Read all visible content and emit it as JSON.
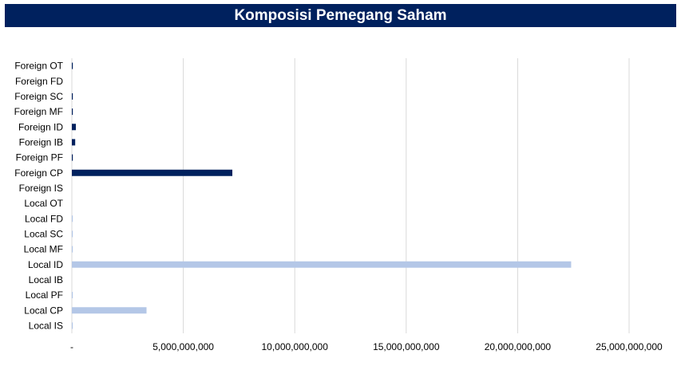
{
  "header": {
    "title": "Komposisi Pemegang Saham"
  },
  "colors": {
    "title_bg": "#00215E",
    "foreign": "#00215E",
    "local": "#B4C7E7",
    "grid": "#D9D9D9"
  },
  "chart_data": {
    "type": "bar",
    "orientation": "horizontal",
    "title": "Komposisi Pemegang Saham",
    "xlabel": "",
    "ylabel": "",
    "xlim": [
      0,
      25000000000
    ],
    "grid": true,
    "legend": "none",
    "categories": [
      "Foreign OT",
      "Foreign FD",
      "Foreign SC",
      "Foreign MF",
      "Foreign ID",
      "Foreign IB",
      "Foreign PF",
      "Foreign CP",
      "Foreign IS",
      "Local OT",
      "Local FD",
      "Local SC",
      "Local MF",
      "Local ID",
      "Local IB",
      "Local PF",
      "Local CP",
      "Local IS"
    ],
    "values": [
      40000000,
      0,
      30000000,
      25000000,
      180000000,
      150000000,
      30000000,
      7200000000,
      0,
      0,
      20000000,
      15000000,
      15000000,
      22400000000,
      0,
      15000000,
      3350000000,
      10000000
    ],
    "groups": [
      "foreign",
      "foreign",
      "foreign",
      "foreign",
      "foreign",
      "foreign",
      "foreign",
      "foreign",
      "foreign",
      "local",
      "local",
      "local",
      "local",
      "local",
      "local",
      "local",
      "local",
      "local"
    ],
    "tick_labels": [
      "-",
      "5,000,000,000",
      "10,000,000,000",
      "15,000,000,000",
      "20,000,000,000",
      "25,000,000,000"
    ]
  }
}
